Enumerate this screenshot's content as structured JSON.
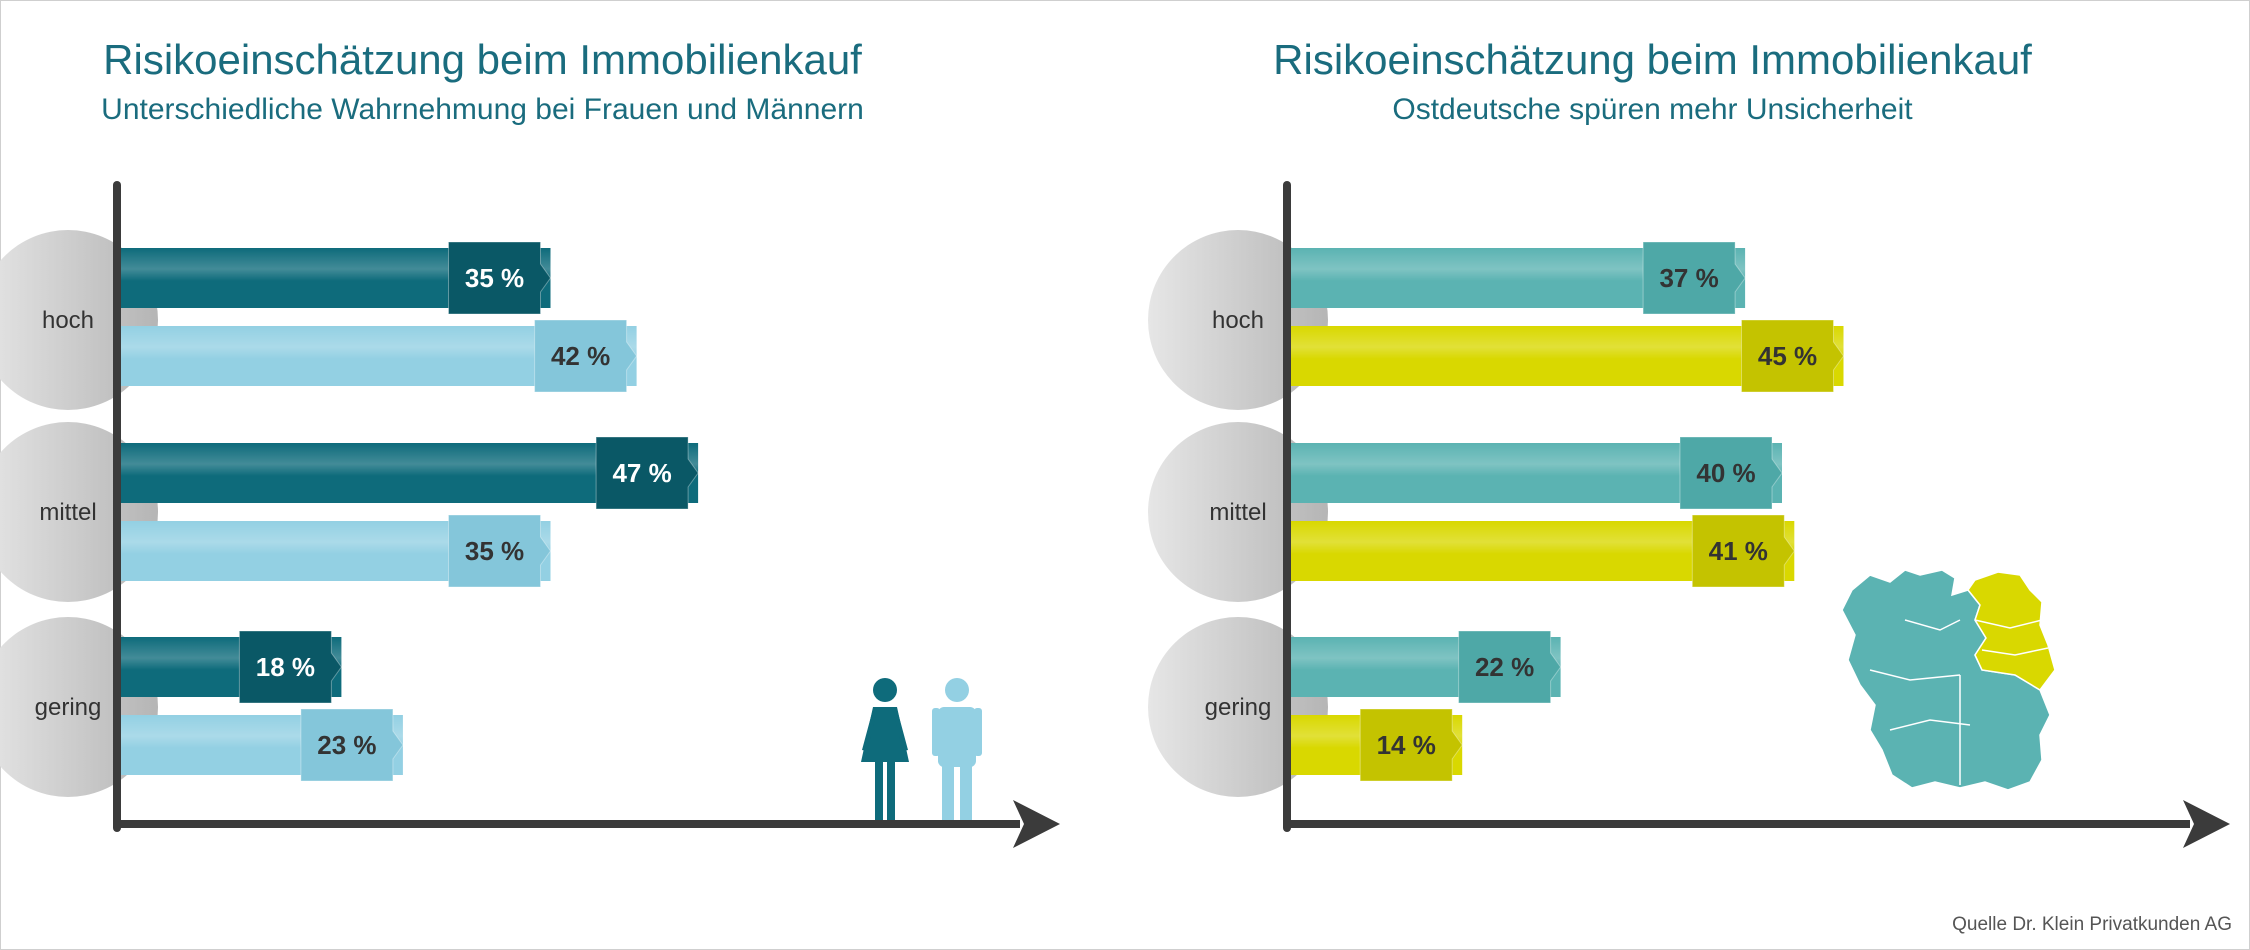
{
  "source": "Quelle Dr. Klein Privatkunden AG",
  "chart_data": [
    {
      "type": "bar",
      "orientation": "horizontal",
      "title": "Risikoeinschätzung beim Immobilienkauf",
      "subtitle": "Unterschiedliche Wahrnehmung bei Frauen und Männern",
      "categories": [
        "hoch",
        "mittel",
        "gering"
      ],
      "series": [
        {
          "name": "Frauen",
          "values": [
            35,
            47,
            18
          ],
          "color": "#0e6b7b",
          "tag_color": "#0a5866",
          "text_color": "#ffffff"
        },
        {
          "name": "Männer",
          "values": [
            42,
            35,
            23
          ],
          "color": "#93d0e3",
          "tag_color": "#84c6da",
          "text_color": "#333333"
        }
      ],
      "value_suffix": " %",
      "xlim": [
        0,
        50
      ],
      "legend": "bottom-right",
      "legend_icons": [
        "woman-icon",
        "man-icon"
      ]
    },
    {
      "type": "bar",
      "orientation": "horizontal",
      "title": "Risikoeinschätzung beim Immobilienkauf",
      "subtitle": "Ostdeutsche spüren mehr Unsicherheit",
      "categories": [
        "hoch",
        "mittel",
        "gering"
      ],
      "series": [
        {
          "name": "Westdeutschland",
          "values": [
            37,
            40,
            22
          ],
          "color": "#5bb3b2",
          "tag_color": "#4ea8a7",
          "text_color": "#333333"
        },
        {
          "name": "Ostdeutschland",
          "values": [
            45,
            41,
            14
          ],
          "color": "#d9d800",
          "tag_color": "#c4c300",
          "text_color": "#333333"
        }
      ],
      "value_suffix": " %",
      "xlim": [
        0,
        50
      ],
      "legend": "bottom-right",
      "legend_icons": [
        "germany-map-icon"
      ]
    }
  ]
}
